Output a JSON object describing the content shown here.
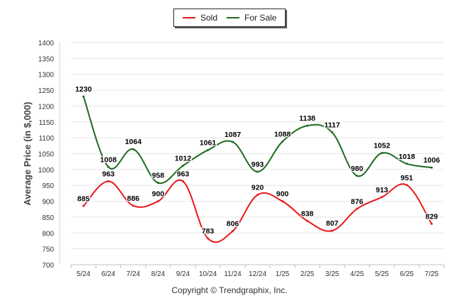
{
  "chart_data": {
    "type": "line",
    "ylabel": "Average Price (in $,000)",
    "ylim": [
      700,
      1400
    ],
    "yticks": [
      "700",
      "750",
      "800",
      "850",
      "900",
      "950",
      "1000",
      "1050",
      "1100",
      "1150",
      "1200",
      "1250",
      "1300",
      "1350",
      "1400"
    ],
    "categories": [
      "5/24",
      "6/24",
      "7/24",
      "8/24",
      "9/24",
      "10/24",
      "11/24",
      "12/24",
      "1/25",
      "2/25",
      "3/25",
      "4/25",
      "5/25",
      "6/25",
      "7/25"
    ],
    "legend_position": "top-center",
    "grid": true,
    "series": [
      {
        "name": "Sold",
        "color": "#e8191c",
        "values": [
          885,
          963,
          886,
          900,
          963,
          783,
          806,
          920,
          900,
          838,
          807,
          876,
          913,
          951,
          829
        ]
      },
      {
        "name": "For Sale",
        "color": "#1e6b1e",
        "values": [
          1230,
          1008,
          1064,
          958,
          1012,
          1061,
          1087,
          993,
          1088,
          1138,
          1117,
          980,
          1052,
          1018,
          1006
        ]
      }
    ]
  },
  "footer": "Copyright © Trendgraphix, Inc."
}
